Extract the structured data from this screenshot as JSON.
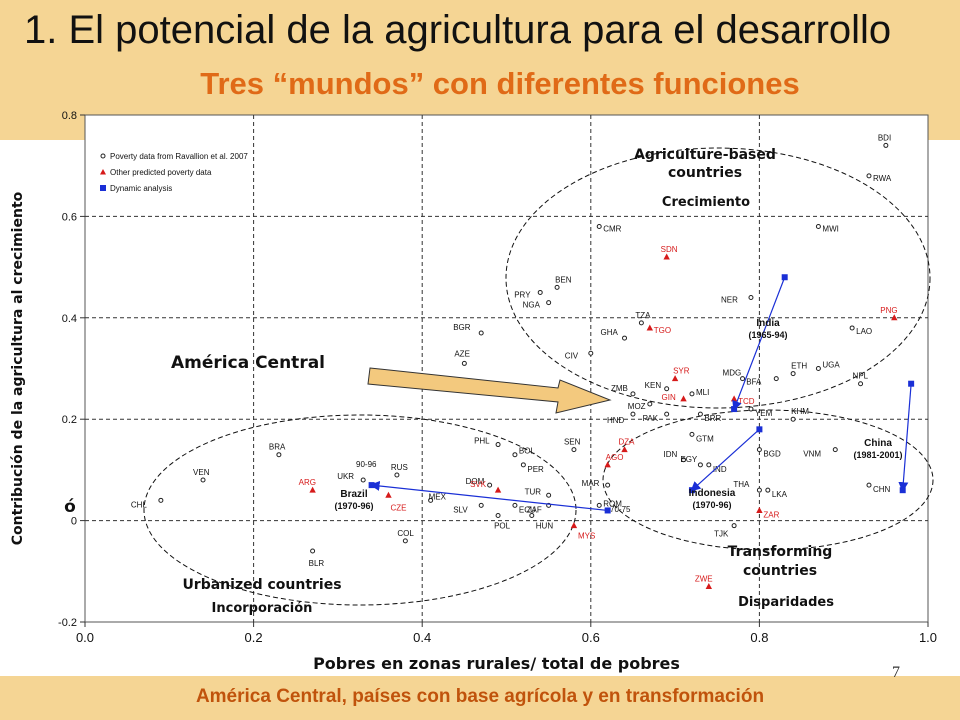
{
  "slide": {
    "title": "1. El potencial de la agricultura para el desarrollo",
    "subtitle": "Tres “mundos” con diferentes funciones",
    "footer": "América Central, países con base agrícola y en transformación",
    "page_number": "7",
    "colors": {
      "band": "#f5d594",
      "accent": "#e06a17",
      "footer_text": "#c0530c",
      "series_blue": "#1a2fd6",
      "series_red": "#d61a1a"
    }
  },
  "chart_data": {
    "type": "scatter",
    "xlabel": "Pobres en zonas rurales/ total de pobres",
    "ylabel": "Contribución de la agricultura al crecimiento",
    "ylabel_extra": "ó",
    "xlim": [
      0.0,
      1.0
    ],
    "ylim": [
      -0.2,
      0.8
    ],
    "x_ticks": [
      "0.0",
      "0.2",
      "0.4",
      "0.6",
      "0.8",
      "1.0"
    ],
    "y_ticks": [
      "-0.2",
      "0",
      "0.2",
      "0.4",
      "0.6",
      "0.8"
    ],
    "grid": true,
    "legend": {
      "placement": "top-left",
      "entries": [
        {
          "label": "Poverty data from Ravallion et al. 2007",
          "marker": "circle"
        },
        {
          "label": "Other predicted poverty data",
          "marker": "triangle"
        },
        {
          "label": "Dynamic analysis",
          "marker": "square"
        }
      ]
    },
    "series": [
      {
        "name": "Poverty data from Ravallion et al. 2007",
        "marker": "circle",
        "points": [
          {
            "label": "BDI",
            "x": 0.95,
            "y": 0.74
          },
          {
            "label": "RWA",
            "x": 0.93,
            "y": 0.68
          },
          {
            "label": "MWI",
            "x": 0.87,
            "y": 0.58
          },
          {
            "label": "CMR",
            "x": 0.61,
            "y": 0.58
          },
          {
            "label": "BEN",
            "x": 0.56,
            "y": 0.46
          },
          {
            "label": "PRY",
            "x": 0.54,
            "y": 0.45
          },
          {
            "label": "NGA",
            "x": 0.55,
            "y": 0.43
          },
          {
            "label": "NER",
            "x": 0.79,
            "y": 0.44
          },
          {
            "label": "TZA",
            "x": 0.66,
            "y": 0.39
          },
          {
            "label": "LAO",
            "x": 0.91,
            "y": 0.38
          },
          {
            "label": "GHA",
            "x": 0.64,
            "y": 0.36
          },
          {
            "label": "BGR",
            "x": 0.47,
            "y": 0.37
          },
          {
            "label": "AZE",
            "x": 0.45,
            "y": 0.31
          },
          {
            "label": "CIV",
            "x": 0.6,
            "y": 0.33
          },
          {
            "label": "ETH",
            "x": 0.84,
            "y": 0.29
          },
          {
            "label": "BFA",
            "x": 0.82,
            "y": 0.28
          },
          {
            "label": "UGA",
            "x": 0.87,
            "y": 0.3
          },
          {
            "label": "MDG",
            "x": 0.78,
            "y": 0.28
          },
          {
            "label": "NPL",
            "x": 0.92,
            "y": 0.27
          },
          {
            "label": "ZMB",
            "x": 0.65,
            "y": 0.25
          },
          {
            "label": "KEN",
            "x": 0.69,
            "y": 0.26
          },
          {
            "label": "MLI",
            "x": 0.72,
            "y": 0.25
          },
          {
            "label": "MOZ",
            "x": 0.67,
            "y": 0.23
          },
          {
            "label": "BRA",
            "x": 0.23,
            "y": 0.13
          },
          {
            "label": "HND",
            "x": 0.65,
            "y": 0.21
          },
          {
            "label": "PAK",
            "x": 0.69,
            "y": 0.21
          },
          {
            "label": "BRR",
            "x": 0.73,
            "y": 0.21
          },
          {
            "label": "YEM",
            "x": 0.79,
            "y": 0.22
          },
          {
            "label": "KHM",
            "x": 0.84,
            "y": 0.2
          },
          {
            "label": "GTM",
            "x": 0.72,
            "y": 0.17
          },
          {
            "label": "SEN",
            "x": 0.58,
            "y": 0.14
          },
          {
            "label": "PHL",
            "x": 0.49,
            "y": 0.15
          },
          {
            "label": "BOL",
            "x": 0.51,
            "y": 0.13
          },
          {
            "label": "PER",
            "x": 0.52,
            "y": 0.11
          },
          {
            "label": "BGD",
            "x": 0.8,
            "y": 0.14
          },
          {
            "label": "VNM",
            "x": 0.89,
            "y": 0.14
          },
          {
            "label": "IDN",
            "x": 0.71,
            "y": 0.12
          },
          {
            "label": "EGY",
            "x": 0.73,
            "y": 0.11
          },
          {
            "label": "IND",
            "x": 0.74,
            "y": 0.11
          },
          {
            "label": "RUS",
            "x": 0.37,
            "y": 0.09
          },
          {
            "label": "VEN",
            "x": 0.14,
            "y": 0.08
          },
          {
            "label": "DOM",
            "x": 0.48,
            "y": 0.07
          },
          {
            "label": "MAR",
            "x": 0.62,
            "y": 0.07
          },
          {
            "label": "UKR",
            "x": 0.33,
            "y": 0.08
          },
          {
            "label": "THA",
            "x": 0.8,
            "y": 0.06
          },
          {
            "label": "LKA",
            "x": 0.81,
            "y": 0.06
          },
          {
            "label": "CHN",
            "x": 0.93,
            "y": 0.07
          },
          {
            "label": "CHL",
            "x": 0.09,
            "y": 0.04
          },
          {
            "label": "MEX",
            "x": 0.41,
            "y": 0.04
          },
          {
            "label": "TUR",
            "x": 0.55,
            "y": 0.05
          },
          {
            "label": "SLV",
            "x": 0.47,
            "y": 0.03
          },
          {
            "label": "ECU",
            "x": 0.51,
            "y": 0.03
          },
          {
            "label": "ZAF",
            "x": 0.55,
            "y": 0.03
          },
          {
            "label": "ROM",
            "x": 0.61,
            "y": 0.03
          },
          {
            "label": "POL",
            "x": 0.49,
            "y": 0.01
          },
          {
            "label": "HUN",
            "x": 0.53,
            "y": 0.01
          },
          {
            "label": "TJK",
            "x": 0.77,
            "y": -0.01
          },
          {
            "label": "COL",
            "x": 0.38,
            "y": -0.04
          },
          {
            "label": "BLR",
            "x": 0.27,
            "y": -0.06
          }
        ]
      },
      {
        "name": "Other predicted poverty data",
        "marker": "triangle",
        "points": [
          {
            "label": "SDN",
            "x": 0.69,
            "y": 0.52
          },
          {
            "label": "PNG",
            "x": 0.96,
            "y": 0.4
          },
          {
            "label": "TGO",
            "x": 0.67,
            "y": 0.38
          },
          {
            "label": "SYR",
            "x": 0.7,
            "y": 0.28
          },
          {
            "label": "GIN",
            "x": 0.71,
            "y": 0.24
          },
          {
            "label": "TCD",
            "x": 0.77,
            "y": 0.24
          },
          {
            "label": "DZA",
            "x": 0.64,
            "y": 0.14
          },
          {
            "label": "AGO",
            "x": 0.62,
            "y": 0.11
          },
          {
            "label": "ARG",
            "x": 0.27,
            "y": 0.06
          },
          {
            "label": "SVK",
            "x": 0.49,
            "y": 0.06
          },
          {
            "label": "CZE",
            "x": 0.36,
            "y": 0.05
          },
          {
            "label": "ZAR",
            "x": 0.8,
            "y": 0.02
          },
          {
            "label": "MYS",
            "x": 0.58,
            "y": -0.01
          },
          {
            "label": "ZWE",
            "x": 0.74,
            "y": -0.13
          }
        ]
      },
      {
        "name": "Dynamic analysis",
        "marker": "square",
        "points": [
          {
            "label": "India start",
            "x": 0.83,
            "y": 0.48
          },
          {
            "label": "India end",
            "x": 0.77,
            "y": 0.22
          },
          {
            "label": "China start",
            "x": 0.98,
            "y": 0.27
          },
          {
            "label": "China end",
            "x": 0.97,
            "y": 0.06
          },
          {
            "label": "Indonesia start",
            "x": 0.8,
            "y": 0.18
          },
          {
            "label": "Indonesia end",
            "x": 0.72,
            "y": 0.06
          },
          {
            "label": "Brazil start",
            "x": 0.62,
            "y": 0.02
          },
          {
            "label": "Brazil end",
            "x": 0.34,
            "y": 0.07
          }
        ]
      }
    ],
    "trajectories": [
      {
        "label": "India",
        "period": "(1965-94)",
        "from": [
          0.83,
          0.48
        ],
        "to": [
          0.77,
          0.22
        ]
      },
      {
        "label": "China",
        "period": "(1981-2001)",
        "from": [
          0.98,
          0.27
        ],
        "to": [
          0.97,
          0.06
        ]
      },
      {
        "label": "Indonesia",
        "period": "(1970-96)",
        "from": [
          0.8,
          0.18
        ],
        "to": [
          0.72,
          0.06
        ]
      },
      {
        "label": "Brazil",
        "period": "(1970-96)",
        "from": [
          0.62,
          0.02
        ],
        "to": [
          0.34,
          0.07
        ]
      }
    ],
    "annotations": {
      "trajectory_end_labels": [
        "90-96",
        "70-75"
      ],
      "groups": [
        {
          "title": "Agriculture-based countries",
          "function": "Crecimiento"
        },
        {
          "title": "Transforming countries",
          "function": "Disparidades"
        },
        {
          "title": "Urbanized countries",
          "function": "Incorporación"
        }
      ],
      "highlight": "América Central"
    }
  }
}
